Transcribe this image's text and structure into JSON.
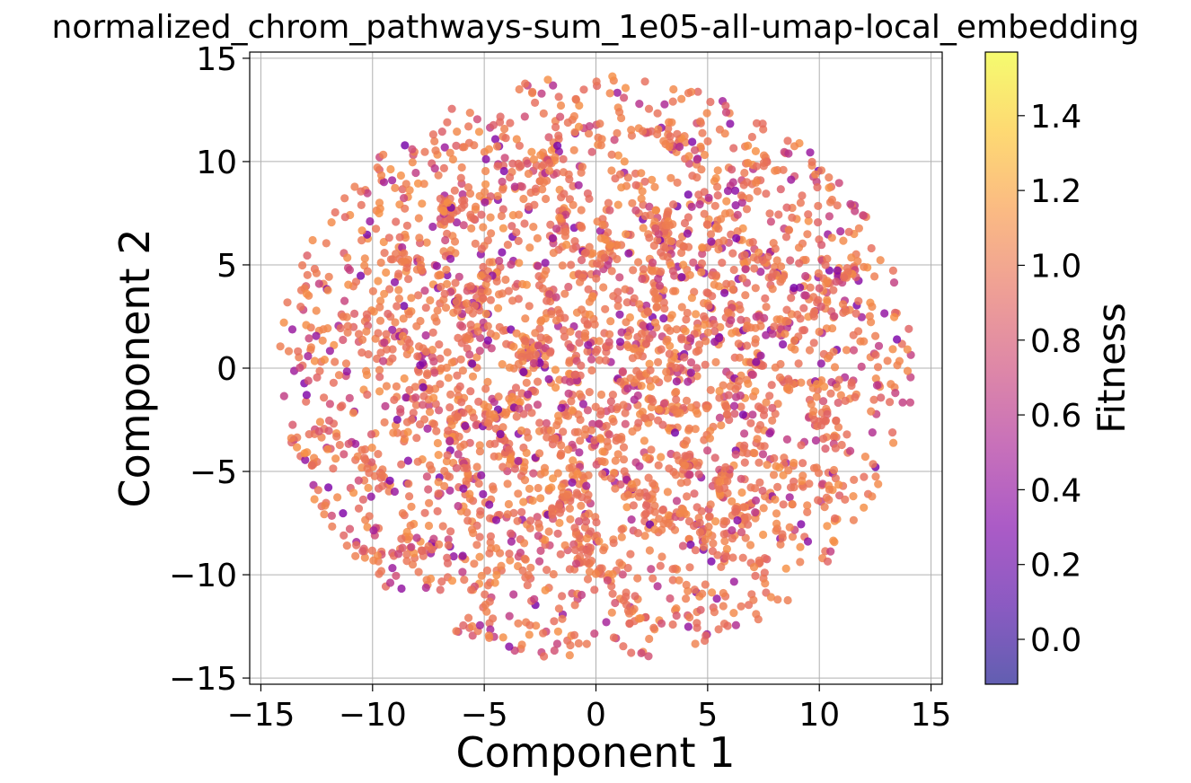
{
  "chart_data": {
    "type": "scatter",
    "title": "normalized_chrom_pathways-sum_1e05-all-umap-local_embedding",
    "xlabel": "Component 1",
    "ylabel": "Component 2",
    "xlim": [
      -15.5,
      15.5
    ],
    "ylim": [
      -15.3,
      15.3
    ],
    "xticks": [
      -15,
      -10,
      -5,
      0,
      5,
      10,
      15
    ],
    "yticks": [
      -15,
      -10,
      -5,
      0,
      5,
      10,
      15
    ],
    "xtick_labels": [
      "−15",
      "−10",
      "−5",
      "0",
      "5",
      "10",
      "15"
    ],
    "ytick_labels": [
      "−15",
      "−10",
      "−5",
      "0",
      "5",
      "10",
      "15"
    ],
    "grid": true,
    "colorbar": {
      "label": "Fitness",
      "colormap": "plasma",
      "range": [
        -0.12,
        1.57
      ],
      "ticks": [
        0.0,
        0.2,
        0.4,
        0.6,
        0.8,
        1.0,
        1.2,
        1.4
      ],
      "tick_labels": [
        "0.0",
        "0.2",
        "0.4",
        "0.6",
        "0.8",
        "1.0",
        "1.2",
        "1.4"
      ]
    },
    "distribution": {
      "shape": "disk",
      "center": [
        0,
        0
      ],
      "radius": 14.2,
      "point_count": 3200,
      "cluster_count": 55,
      "fitness_typical": 1.02,
      "fitness_min": 0.25,
      "fitness_max": 1.15
    },
    "clusters": [
      [
        -4.6,
        4.6
      ],
      [
        -2.1,
        3.3
      ],
      [
        -1.6,
        6.9
      ],
      [
        0.4,
        5.9
      ],
      [
        2.6,
        4.6
      ],
      [
        5.1,
        4.2
      ],
      [
        6.3,
        6.0
      ],
      [
        8.2,
        4.6
      ],
      [
        -5.2,
        1.8
      ],
      [
        -3.2,
        0.5
      ],
      [
        -1.1,
        -1.1
      ],
      [
        1.1,
        0.9
      ],
      [
        2.4,
        2.4
      ],
      [
        3.6,
        -0.3
      ],
      [
        5.9,
        -1.8
      ],
      [
        8.4,
        -0.4
      ],
      [
        -6.4,
        -2.9
      ],
      [
        -4.2,
        -1.9
      ],
      [
        -2.4,
        -3.2
      ],
      [
        0.1,
        -3.4
      ],
      [
        2.1,
        -2.2
      ],
      [
        4.1,
        -4.3
      ],
      [
        -5.6,
        -5.7
      ],
      [
        -3.4,
        -6.3
      ],
      [
        -1.3,
        -4.6
      ],
      [
        1.6,
        -5.9
      ],
      [
        3.3,
        -7.1
      ],
      [
        5.6,
        -5.6
      ],
      [
        -3.9,
        8.3
      ],
      [
        2.1,
        8.2
      ],
      [
        -8.2,
        5.1
      ],
      [
        -7.6,
        -0.6
      ],
      [
        9.6,
        2.6
      ],
      [
        10.1,
        -2.6
      ],
      [
        -0.6,
        -8.6
      ],
      [
        6.4,
        -7.6
      ],
      [
        -6.6,
        7.6
      ],
      [
        7.1,
        9.1
      ],
      [
        -9.6,
        1.6
      ],
      [
        -1.9,
        10.6
      ],
      [
        3.3,
        10.9
      ],
      [
        -7.5,
        -8.5
      ],
      [
        0.9,
        -11.0
      ],
      [
        -10.0,
        -5.0
      ],
      [
        11.0,
        4.5
      ],
      [
        -2.5,
        1.0
      ],
      [
        1.8,
        -0.8
      ],
      [
        -0.5,
        3.0
      ],
      [
        4.5,
        1.5
      ],
      [
        -4.0,
        -4.0
      ],
      [
        6.8,
        2.0
      ],
      [
        -6.0,
        3.5
      ],
      [
        3.0,
        6.5
      ],
      [
        -2.0,
        -7.0
      ],
      [
        8.5,
        -5.0
      ]
    ]
  }
}
